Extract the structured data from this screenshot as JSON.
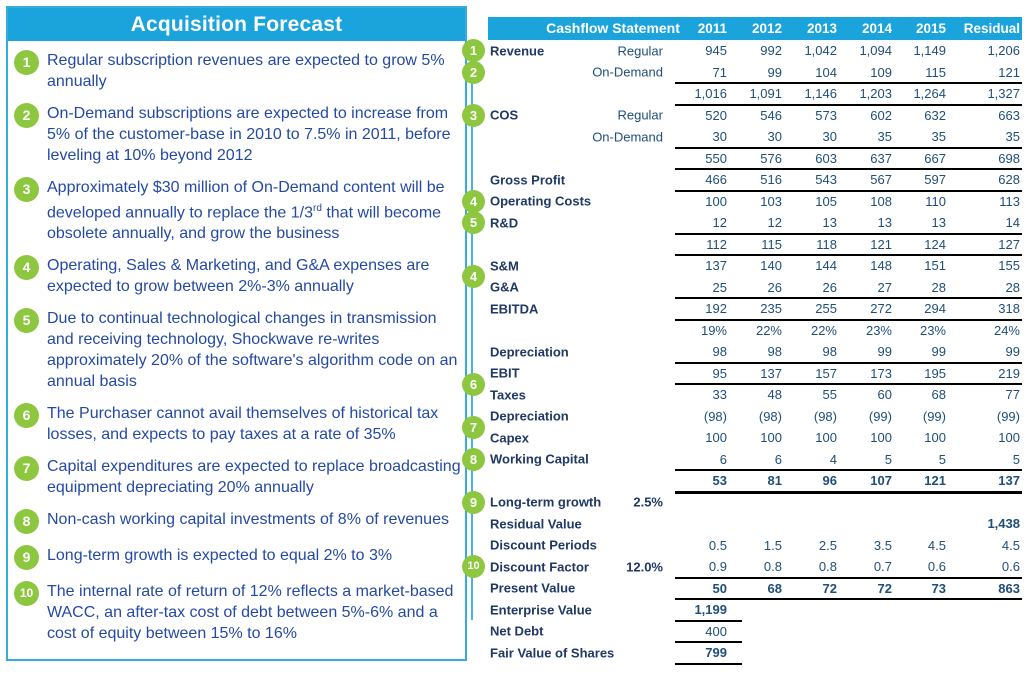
{
  "colors": {
    "accent": "#1BA3DC",
    "panelBorder": "#35ACDF",
    "connector": "#47B5E4",
    "green": "#8DC63F",
    "navy": "#1F3864",
    "numBlue": "#1F4E79",
    "bulletBlue": "#2449A5",
    "rule": "#000000",
    "paper": "#FFFFFF"
  },
  "panel": {
    "title": "Acquisition Forecast",
    "bullets": [
      {
        "num": "1",
        "text": "Regular subscription revenues are expected to grow 5% annually"
      },
      {
        "num": "2",
        "text": "On-Demand subscriptions are expected to increase from 5% of the customer-base in 2010 to 7.5% in 2011, before leveling at 10% beyond 2012"
      },
      {
        "num": "3",
        "pre": "Approximately $30 million of On-Demand content will be developed annually to replace the 1/3",
        "sup": "rd",
        "post": " that will become obsolete annually, and grow the business"
      },
      {
        "num": "4",
        "text": "Operating, Sales & Marketing, and G&A expenses are expected to grow between 2%-3% annually"
      },
      {
        "num": "5",
        "text": "Due to continual technological changes in transmission and receiving technology, Shockwave re-writes approximately 20% of the software's algorithm code on an annual basis"
      },
      {
        "num": "6",
        "text": "The Purchaser cannot avail themselves of historical tax losses, and expects to pay taxes at a rate of 35%"
      },
      {
        "num": "7",
        "text": "Capital expenditures are expected to replace broadcasting equipment depreciating 20% annually"
      },
      {
        "num": "8",
        "text": "Non-cash working capital investments of 8% of revenues"
      },
      {
        "num": "9",
        "text": "Long-term growth is expected to equal 2% to 3%"
      },
      {
        "num": "10",
        "text": "The internal rate of return of 12% reflects a market-based WACC, an after-tax cost of debt between 5%-6% and a cost of equity between 15% to 16%"
      }
    ]
  },
  "table": {
    "header": {
      "title": "Cashflow Statement",
      "columns": [
        "2011",
        "2012",
        "2013",
        "2014",
        "2015",
        "Residual"
      ]
    },
    "rows": [
      {
        "label": "Revenue",
        "sub": "Regular",
        "vals": [
          "945",
          "992",
          "1,042",
          "1,094",
          "1,149",
          "1,206"
        ],
        "badge": "1"
      },
      {
        "label": "",
        "sub": "On-Demand",
        "vals": [
          "71",
          "99",
          "104",
          "109",
          "115",
          "121"
        ],
        "badge": "2",
        "line": true
      },
      {
        "label": "",
        "sub": "",
        "vals": [
          "1,016",
          "1,091",
          "1,146",
          "1,203",
          "1,264",
          "1,327"
        ],
        "line": true
      },
      {
        "label": "COS",
        "sub": "Regular",
        "vals": [
          "520",
          "546",
          "573",
          "602",
          "632",
          "663"
        ],
        "badge": "3"
      },
      {
        "label": "",
        "sub": "On-Demand",
        "vals": [
          "30",
          "30",
          "30",
          "35",
          "35",
          "35"
        ],
        "line": true
      },
      {
        "label": "",
        "sub": "",
        "vals": [
          "550",
          "576",
          "603",
          "637",
          "667",
          "698"
        ],
        "line": true
      },
      {
        "label": "Gross Profit",
        "vals": [
          "466",
          "516",
          "543",
          "567",
          "597",
          "628"
        ],
        "line": true
      },
      {
        "label": "Operating Costs",
        "vals": [
          "100",
          "103",
          "105",
          "108",
          "110",
          "113"
        ],
        "badge": "4"
      },
      {
        "label": "R&D",
        "vals": [
          "12",
          "12",
          "13",
          "13",
          "13",
          "14"
        ],
        "badge": "5",
        "line": true
      },
      {
        "label": "",
        "vals": [
          "112",
          "115",
          "118",
          "121",
          "124",
          "127"
        ],
        "line": true
      },
      {
        "label": "S&M",
        "vals": [
          "137",
          "140",
          "144",
          "148",
          "151",
          "155"
        ],
        "badge": "4",
        "badgePos": "between"
      },
      {
        "label": "G&A",
        "vals": [
          "25",
          "26",
          "26",
          "27",
          "28",
          "28"
        ],
        "line": true
      },
      {
        "label": "EBITDA",
        "vals": [
          "192",
          "235",
          "255",
          "272",
          "294",
          "318"
        ],
        "line": true
      },
      {
        "label": "",
        "vals": [
          "19%",
          "22%",
          "22%",
          "23%",
          "23%",
          "24%"
        ]
      },
      {
        "label": "Depreciation",
        "vals": [
          "98",
          "98",
          "98",
          "99",
          "99",
          "99"
        ],
        "line": true
      },
      {
        "label": "EBIT",
        "vals": [
          "95",
          "137",
          "157",
          "173",
          "195",
          "219"
        ],
        "badge": "6",
        "badgePos": "between",
        "line": true
      },
      {
        "label": "Taxes",
        "vals": [
          "33",
          "48",
          "55",
          "60",
          "68",
          "77"
        ]
      },
      {
        "label": "Depreciation",
        "vals": [
          "(98)",
          "(98)",
          "(98)",
          "(99)",
          "(99)",
          "(99)"
        ],
        "badge": "7",
        "badgePos": "between"
      },
      {
        "label": "Capex",
        "vals": [
          "100",
          "100",
          "100",
          "100",
          "100",
          "100"
        ]
      },
      {
        "label": "Working Capital",
        "vals": [
          "6",
          "6",
          "4",
          "5",
          "5",
          "5"
        ],
        "badge": "8",
        "line": true
      },
      {
        "label": "",
        "vals": [
          "53",
          "81",
          "96",
          "107",
          "121",
          "137"
        ],
        "bold": true,
        "thickline": true
      },
      {
        "label": "Long-term growth",
        "sub": "2.5%",
        "subBold": true,
        "vals": [],
        "badge": "9"
      },
      {
        "label": "Residual Value",
        "vals": [
          "",
          "",
          "",
          "",
          "",
          "1,438"
        ],
        "bold": true
      },
      {
        "label": "Discount Periods",
        "vals": [
          "0.5",
          "1.5",
          "2.5",
          "3.5",
          "4.5",
          "4.5"
        ]
      },
      {
        "label": "Discount Factor",
        "sub": "12.0%",
        "subBold": true,
        "vals": [
          "0.9",
          "0.8",
          "0.8",
          "0.7",
          "0.6",
          "0.6"
        ],
        "badge": "10",
        "line": true
      },
      {
        "label": "Present Value",
        "vals": [
          "50",
          "68",
          "72",
          "72",
          "73",
          "863"
        ],
        "bold": true,
        "line": true
      },
      {
        "label": "Enterprise Value",
        "vals": [
          "1,199",
          "",
          "",
          "",
          "",
          ""
        ],
        "bold": true,
        "shortline": true
      },
      {
        "label": "Net Debt",
        "vals": [
          "400",
          "",
          "",
          "",
          "",
          ""
        ],
        "shortline": true
      },
      {
        "label": "Fair Value of Shares",
        "vals": [
          "799",
          "",
          "",
          "",
          "",
          ""
        ],
        "bold": true,
        "shortline": true
      }
    ]
  }
}
